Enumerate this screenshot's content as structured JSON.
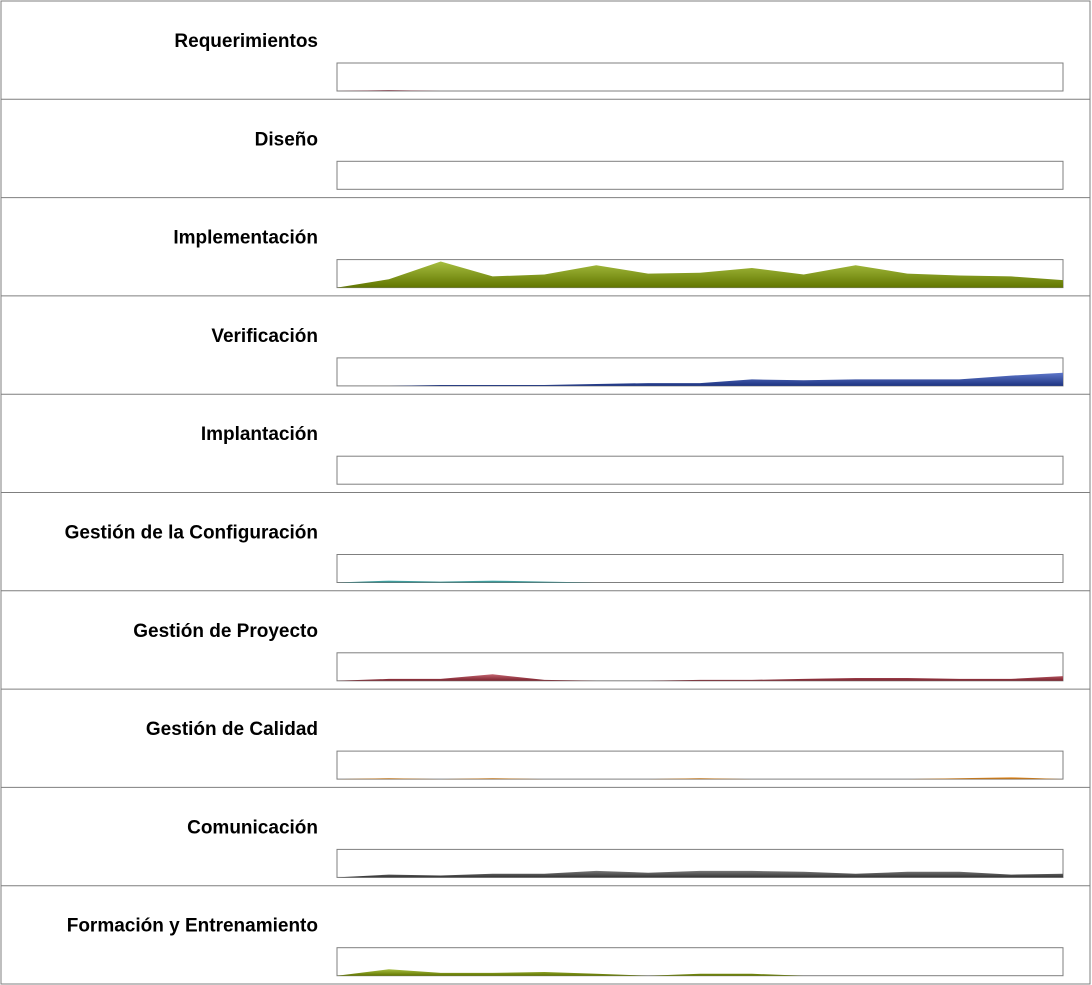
{
  "chart_data": {
    "type": "area",
    "title": "",
    "xlabel": "",
    "ylabel": "",
    "x": [
      1,
      2,
      3,
      4,
      5,
      6,
      7,
      8,
      9,
      10,
      11,
      12,
      13,
      14,
      15
    ],
    "ylim": [
      0,
      30
    ],
    "grid": false,
    "legend": "none",
    "series": [
      {
        "name": "Requerimientos",
        "color": "#8a3a4a",
        "values": [
          0,
          1,
          0,
          0,
          0,
          0,
          0,
          0,
          0,
          0,
          0,
          0,
          0,
          0,
          0
        ]
      },
      {
        "name": "Diseño",
        "color": "#333333",
        "values": [
          0,
          0,
          0,
          0,
          0,
          0,
          0,
          0,
          0,
          0,
          0,
          0,
          0,
          0,
          0
        ]
      },
      {
        "name": "Implementación",
        "color": "#8aa800",
        "values": [
          0,
          9,
          28,
          12,
          14,
          24,
          15,
          16,
          21,
          14,
          24,
          15,
          13,
          12,
          8
        ]
      },
      {
        "name": "Verificación",
        "color": "#2a4ab8",
        "values": [
          0,
          0,
          1,
          1,
          1,
          2,
          3,
          3,
          7,
          6,
          7,
          7,
          7,
          11,
          14
        ]
      },
      {
        "name": "Implantación",
        "color": "#333333",
        "values": [
          0,
          0,
          0,
          0,
          0,
          0,
          0,
          0,
          0,
          0,
          0,
          0,
          0,
          0,
          0
        ]
      },
      {
        "name": "Gestión de la Configuración",
        "color": "#2aa8a8",
        "values": [
          0,
          2,
          1,
          2,
          1,
          0,
          0,
          0,
          0,
          0,
          0,
          0,
          0,
          0,
          0
        ]
      },
      {
        "name": "Gestión de Proyecto",
        "color": "#b03040",
        "values": [
          0,
          2,
          2,
          7,
          1,
          0,
          0,
          1,
          1,
          2,
          3,
          3,
          2,
          2,
          5
        ]
      },
      {
        "name": "Gestión de Calidad",
        "color": "#f08a10",
        "values": [
          0,
          1,
          0,
          1,
          0,
          0,
          0,
          1,
          0,
          0,
          0,
          0,
          1,
          2,
          0
        ]
      },
      {
        "name": "Comunicación",
        "color": "#4a4a4a",
        "values": [
          0,
          3,
          2,
          4,
          4,
          7,
          5,
          7,
          7,
          6,
          4,
          6,
          6,
          3,
          4
        ]
      },
      {
        "name": "Formación y Entrenamiento",
        "color": "#8aa800",
        "values": [
          0,
          7,
          3,
          3,
          4,
          2,
          0,
          2,
          2,
          0,
          0,
          0,
          0,
          0,
          0
        ]
      }
    ]
  }
}
